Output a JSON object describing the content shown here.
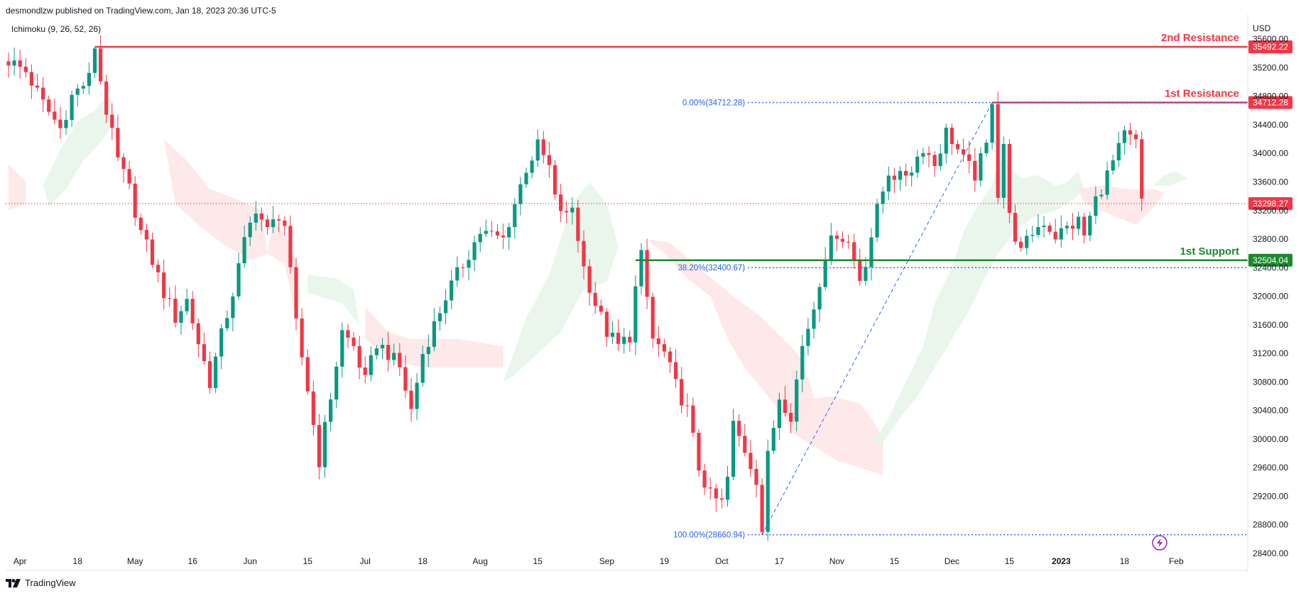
{
  "header": {
    "published": "desmondlzw published on TradingView.com, Jan 18, 2023 20:36 UTC-5",
    "indicator": "Ichimoku (9, 26, 52, 26)",
    "currency": "USD"
  },
  "footer": {
    "brand": "TradingView"
  },
  "chart_data": {
    "type": "candlestick",
    "ylim": [
      28300,
      35850
    ],
    "y_ticks": [
      35600,
      35200,
      34800,
      34400,
      34000,
      33600,
      33200,
      32800,
      32400,
      32000,
      31600,
      31200,
      30800,
      30400,
      30000,
      29600,
      29200,
      28800,
      28400
    ],
    "y_tick_labels": [
      "35600.00",
      "35200.00",
      "34800.00",
      "34400.00",
      "34000.00",
      "33600.00",
      "33200.00",
      "32800.00",
      "32400.00",
      "32000.00",
      "31600.00",
      "31200.00",
      "30800.00",
      "30400.00",
      "30000.00",
      "29600.00",
      "29200.00",
      "28800.00",
      "28400.00"
    ],
    "x_ticks": [
      {
        "label": "Apr",
        "bar": 2
      },
      {
        "label": "18",
        "bar": 12
      },
      {
        "label": "May",
        "bar": 22
      },
      {
        "label": "16",
        "bar": 32
      },
      {
        "label": "Jun",
        "bar": 42
      },
      {
        "label": "15",
        "bar": 52
      },
      {
        "label": "Jul",
        "bar": 62
      },
      {
        "label": "18",
        "bar": 72
      },
      {
        "label": "Aug",
        "bar": 82
      },
      {
        "label": "15",
        "bar": 92
      },
      {
        "label": "Sep",
        "bar": 104
      },
      {
        "label": "19",
        "bar": 114
      },
      {
        "label": "Oct",
        "bar": 124
      },
      {
        "label": "17",
        "bar": 134
      },
      {
        "label": "Nov",
        "bar": 144
      },
      {
        "label": "15",
        "bar": 154
      },
      {
        "label": "Dec",
        "bar": 164
      },
      {
        "label": "15",
        "bar": 174
      },
      {
        "label": "2023",
        "bar": 183,
        "bold": true
      },
      {
        "label": "18",
        "bar": 194
      },
      {
        "label": "Feb",
        "bar": 203
      }
    ],
    "last_price": 33298.27,
    "levels": [
      {
        "name": "2nd Resistance",
        "value": 35492.22,
        "label": "35492.22",
        "color": "#f23645",
        "start_bar": 15
      },
      {
        "name": "1st Resistance",
        "value": 34712.28,
        "label": "34712.28",
        "color": "#f23645",
        "start_bar": 171
      },
      {
        "name": "1st Support",
        "value": 32504.04,
        "label": "32504.04",
        "color": "#1b8a2c",
        "start_bar": 109
      }
    ],
    "current_price_label": "33298.27",
    "fibonacci": {
      "high": 34712.28,
      "low": 28660.94,
      "high_label": "0.00%(34712.28)",
      "mid_label": "38.20%(32400.67)",
      "mid_value": 32400.67,
      "low_label": "100.00%(28660.94)",
      "start_bar": 131,
      "end_bar": 171
    },
    "keypoints": [
      [
        0,
        35300
      ],
      [
        3,
        35150
      ],
      [
        6,
        34700
      ],
      [
        9,
        34350
      ],
      [
        11,
        34800
      ],
      [
        14,
        35050
      ],
      [
        15,
        35450
      ],
      [
        17,
        34600
      ],
      [
        19,
        33900
      ],
      [
        21,
        33500
      ],
      [
        23,
        32900
      ],
      [
        25,
        32500
      ],
      [
        27,
        32050
      ],
      [
        29,
        31700
      ],
      [
        31,
        31950
      ],
      [
        33,
        31350
      ],
      [
        35,
        30800
      ],
      [
        37,
        31450
      ],
      [
        39,
        32050
      ],
      [
        41,
        32750
      ],
      [
        43,
        33250
      ],
      [
        45,
        32900
      ],
      [
        47,
        33150
      ],
      [
        48,
        33000
      ],
      [
        50,
        31600
      ],
      [
        52,
        30700
      ],
      [
        54,
        29700
      ],
      [
        56,
        30600
      ],
      [
        58,
        31500
      ],
      [
        60,
        31300
      ],
      [
        62,
        30800
      ],
      [
        64,
        31350
      ],
      [
        66,
        31200
      ],
      [
        68,
        31000
      ],
      [
        70,
        30400
      ],
      [
        72,
        31200
      ],
      [
        74,
        31600
      ],
      [
        76,
        32000
      ],
      [
        78,
        32300
      ],
      [
        80,
        32600
      ],
      [
        82,
        32900
      ],
      [
        84,
        32850
      ],
      [
        86,
        32800
      ],
      [
        88,
        33300
      ],
      [
        90,
        33800
      ],
      [
        92,
        34100
      ],
      [
        94,
        33800
      ],
      [
        95,
        33350
      ],
      [
        97,
        33100
      ],
      [
        98,
        33250
      ],
      [
        100,
        32400
      ],
      [
        102,
        31900
      ],
      [
        104,
        31500
      ],
      [
        106,
        31300
      ],
      [
        108,
        31450
      ],
      [
        109,
        32100
      ],
      [
        110,
        32550
      ],
      [
        112,
        31400
      ],
      [
        114,
        31200
      ],
      [
        116,
        30750
      ],
      [
        118,
        30400
      ],
      [
        120,
        29600
      ],
      [
        122,
        29200
      ],
      [
        124,
        29100
      ],
      [
        125,
        29450
      ],
      [
        126,
        30200
      ],
      [
        128,
        29850
      ],
      [
        130,
        29450
      ],
      [
        131,
        28800
      ],
      [
        132,
        29750
      ],
      [
        134,
        30600
      ],
      [
        136,
        30350
      ],
      [
        138,
        31300
      ],
      [
        140,
        31850
      ],
      [
        142,
        32600
      ],
      [
        144,
        32900
      ],
      [
        146,
        32750
      ],
      [
        148,
        32250
      ],
      [
        149,
        32500
      ],
      [
        151,
        33200
      ],
      [
        153,
        33750
      ],
      [
        155,
        33650
      ],
      [
        157,
        33800
      ],
      [
        159,
        34100
      ],
      [
        161,
        33850
      ],
      [
        163,
        34300
      ],
      [
        164,
        34200
      ],
      [
        166,
        33900
      ],
      [
        168,
        33700
      ],
      [
        170,
        34100
      ],
      [
        171,
        34700
      ],
      [
        172,
        33450
      ],
      [
        173,
        34150
      ],
      [
        174,
        33100
      ],
      [
        176,
        32600
      ],
      [
        178,
        32900
      ],
      [
        180,
        33050
      ],
      [
        182,
        32850
      ],
      [
        184,
        32950
      ],
      [
        186,
        33050
      ],
      [
        187,
        32850
      ],
      [
        189,
        33350
      ],
      [
        191,
        33700
      ],
      [
        193,
        34050
      ],
      [
        194,
        34250
      ],
      [
        196,
        34150
      ],
      [
        197,
        33300
      ]
    ],
    "ichimoku_clouds": [
      {
        "color": "green",
        "points": [
          [
            6,
            33550
          ],
          [
            9,
            34050
          ],
          [
            12,
            34450
          ],
          [
            15,
            34600
          ],
          [
            17,
            34800
          ],
          [
            18,
            34750
          ],
          [
            18,
            34400
          ],
          [
            16,
            34150
          ],
          [
            13,
            33900
          ],
          [
            10,
            33500
          ],
          [
            7,
            33250
          ]
        ]
      },
      {
        "color": "red",
        "points": [
          [
            0,
            33850
          ],
          [
            3,
            33600
          ],
          [
            3,
            33300
          ],
          [
            0,
            33200
          ]
        ]
      },
      {
        "color": "red",
        "points": [
          [
            27,
            34200
          ],
          [
            31,
            33900
          ],
          [
            35,
            33500
          ],
          [
            40,
            33350
          ],
          [
            44,
            33200
          ],
          [
            45,
            32600
          ],
          [
            42,
            32500
          ],
          [
            37,
            32750
          ],
          [
            33,
            33000
          ],
          [
            29,
            33300
          ]
        ]
      },
      {
        "color": "red",
        "points": [
          [
            46,
            33050
          ],
          [
            48,
            32900
          ],
          [
            50,
            32500
          ],
          [
            50,
            31700
          ],
          [
            48,
            32450
          ],
          [
            45,
            32600
          ]
        ]
      },
      {
        "color": "green",
        "points": [
          [
            52,
            32300
          ],
          [
            57,
            32250
          ],
          [
            60,
            32100
          ],
          [
            61,
            31600
          ],
          [
            58,
            31900
          ],
          [
            52,
            32050
          ]
        ]
      },
      {
        "color": "red",
        "points": [
          [
            62,
            31850
          ],
          [
            66,
            31500
          ],
          [
            70,
            31400
          ],
          [
            78,
            31400
          ],
          [
            86,
            31300
          ],
          [
            86,
            31000
          ],
          [
            80,
            31000
          ],
          [
            72,
            31000
          ],
          [
            67,
            31100
          ],
          [
            62,
            31400
          ]
        ]
      },
      {
        "color": "green",
        "points": [
          [
            86,
            30800
          ],
          [
            90,
            31700
          ],
          [
            94,
            32300
          ],
          [
            98,
            33300
          ],
          [
            101,
            33600
          ],
          [
            104,
            33300
          ],
          [
            106,
            32700
          ],
          [
            104,
            32200
          ],
          [
            100,
            32100
          ],
          [
            96,
            31500
          ],
          [
            92,
            31200
          ],
          [
            88,
            30900
          ]
        ]
      },
      {
        "color": "red",
        "points": [
          [
            111,
            32800
          ],
          [
            114,
            32600
          ],
          [
            118,
            32250
          ],
          [
            122,
            32000
          ],
          [
            125,
            31400
          ],
          [
            128,
            31000
          ],
          [
            131,
            30700
          ],
          [
            134,
            30400
          ],
          [
            138,
            30200
          ],
          [
            140,
            30600
          ],
          [
            138,
            31100
          ],
          [
            136,
            31300
          ],
          [
            131,
            31700
          ],
          [
            126,
            32000
          ],
          [
            120,
            32400
          ],
          [
            115,
            32750
          ]
        ]
      },
      {
        "color": "red",
        "points": [
          [
            134,
            30500
          ],
          [
            138,
            30550
          ],
          [
            143,
            30600
          ],
          [
            148,
            30500
          ],
          [
            150,
            30300
          ],
          [
            152,
            30000
          ],
          [
            152,
            29500
          ],
          [
            148,
            29600
          ],
          [
            144,
            29700
          ],
          [
            140,
            29900
          ],
          [
            136,
            30100
          ]
        ]
      },
      {
        "color": "green",
        "points": [
          [
            150,
            29900
          ],
          [
            153,
            30300
          ],
          [
            156,
            30800
          ],
          [
            159,
            31300
          ],
          [
            161,
            31900
          ],
          [
            164,
            32400
          ],
          [
            166,
            32900
          ],
          [
            168,
            33200
          ],
          [
            171,
            33550
          ],
          [
            172,
            33900
          ],
          [
            174,
            33800
          ],
          [
            176,
            33650
          ],
          [
            179,
            33700
          ],
          [
            182,
            33550
          ],
          [
            184,
            33600
          ],
          [
            186,
            33750
          ],
          [
            187,
            33500
          ],
          [
            185,
            33350
          ],
          [
            182,
            33200
          ],
          [
            178,
            33100
          ],
          [
            175,
            32900
          ],
          [
            172,
            32600
          ],
          [
            170,
            32300
          ],
          [
            167,
            31800
          ],
          [
            164,
            31400
          ],
          [
            161,
            31000
          ],
          [
            158,
            30600
          ],
          [
            155,
            30300
          ],
          [
            152,
            29950
          ]
        ]
      },
      {
        "color": "red",
        "points": [
          [
            186,
            33500
          ],
          [
            190,
            33550
          ],
          [
            195,
            33500
          ],
          [
            199,
            33500
          ],
          [
            201,
            33450
          ],
          [
            198,
            33150
          ],
          [
            196,
            33000
          ],
          [
            193,
            33100
          ],
          [
            190,
            33200
          ],
          [
            187,
            33300
          ]
        ]
      },
      {
        "color": "green",
        "points": [
          [
            199,
            33550
          ],
          [
            201,
            33700
          ],
          [
            203,
            33750
          ],
          [
            205,
            33650
          ],
          [
            202,
            33550
          ]
        ]
      }
    ]
  },
  "colors": {
    "up": "#089981",
    "down": "#f23645",
    "resistance": "#f23645",
    "support": "#1b8a2c",
    "fib": "#2962ff",
    "cloud_green": "#e6f4e9",
    "cloud_red": "#fde5e5",
    "price_line": "#f23645"
  }
}
